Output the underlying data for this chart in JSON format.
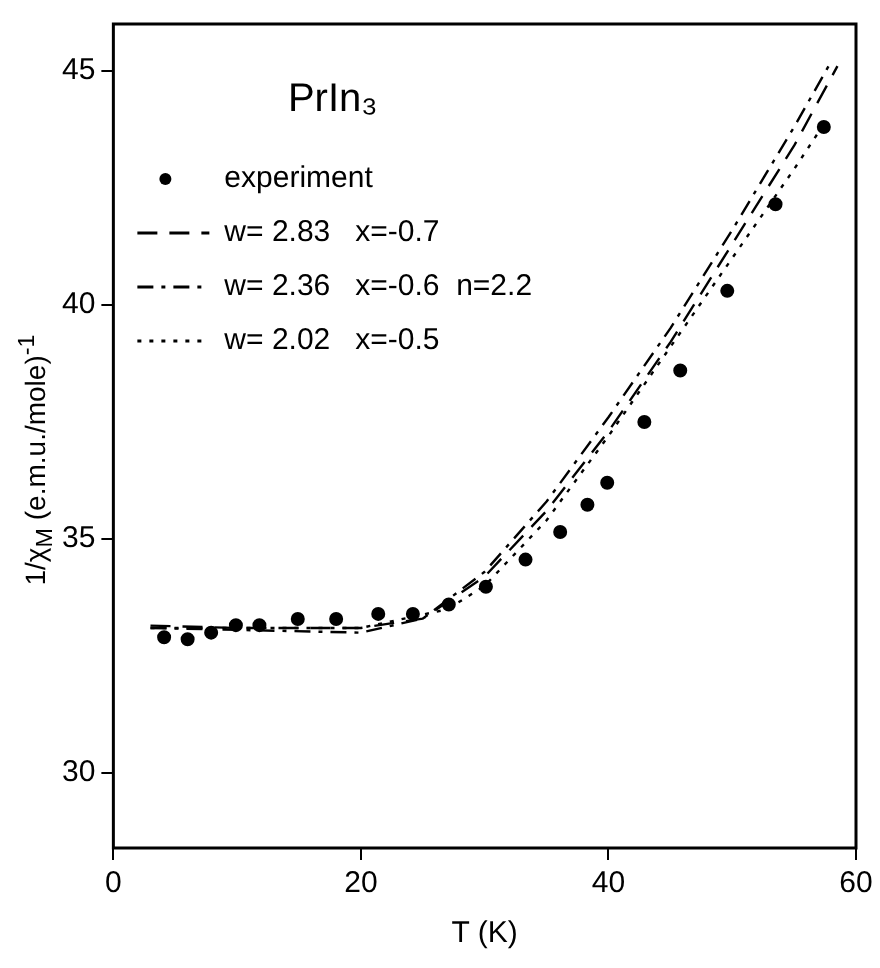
{
  "chart_data": {
    "type": "line",
    "title": "PrIn₃",
    "xlabel": "T (K)",
    "ylabel": "1/χ$_{M}$ (e.m.u./mole)$^{-1}$",
    "xlim": [
      0,
      60
    ],
    "xticks": [
      0,
      20,
      40,
      60
    ],
    "ylim": [
      28.4,
      46
    ],
    "yticks": [
      30,
      35,
      40,
      45
    ],
    "grid": false,
    "legend": "top left",
    "series": [
      {
        "name": "experiment",
        "type": "scatter",
        "marker": "circle",
        "color": "#000000",
        "x": [
          4.1,
          6.0,
          7.9,
          9.9,
          11.8,
          14.9,
          18.0,
          21.4,
          24.2,
          27.1,
          30.1,
          33.3,
          36.1,
          38.3,
          39.9,
          42.9,
          45.8,
          49.6,
          53.5,
          57.4
        ],
        "values": [
          32.9,
          32.86,
          33.0,
          33.16,
          33.16,
          33.29,
          33.29,
          33.4,
          33.4,
          33.6,
          33.98,
          34.56,
          35.15,
          35.73,
          36.2,
          37.5,
          38.6,
          40.3,
          42.15,
          43.8
        ]
      },
      {
        "name": "w= 2.83   x=-0.7",
        "marker": "none",
        "line_style": "dashed",
        "color": "#000000",
        "x": [
          3,
          10,
          20,
          25,
          30,
          35,
          40,
          45,
          50,
          55,
          58.5
        ],
        "values": [
          33.15,
          33.1,
          33.1,
          33.3,
          34.2,
          35.6,
          37.3,
          39.2,
          41.3,
          43.4,
          45.1
        ]
      },
      {
        "name": "w= 2.36   x=-0.6  n=2.2",
        "marker": "none",
        "line_style": "dashdot",
        "color": "#000000",
        "x": [
          3,
          20,
          25,
          30,
          35,
          40,
          45,
          50,
          55,
          58
        ],
        "values": [
          33.1,
          33.0,
          33.3,
          34.3,
          35.8,
          37.6,
          39.5,
          41.6,
          43.8,
          45.2
        ]
      },
      {
        "name": "w= 2.02   x=-0.5",
        "marker": "none",
        "line_style": "dotted",
        "color": "#000000",
        "x": [
          3,
          20,
          27,
          30,
          35,
          40,
          45,
          50,
          55,
          57
        ],
        "values": [
          33.1,
          33.1,
          33.5,
          34.0,
          35.4,
          37.2,
          39.1,
          41.0,
          42.9,
          43.7
        ]
      }
    ]
  }
}
